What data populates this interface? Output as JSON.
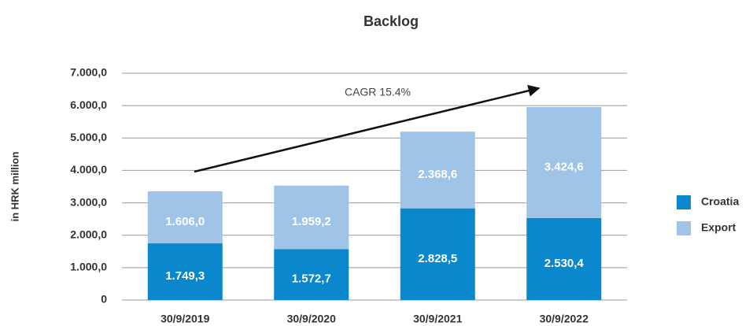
{
  "chart_data": {
    "type": "stacked_bar",
    "title": "Backlog",
    "y_axis_label": "in HRK million",
    "annotation": "CAGR 15.4%",
    "categories": [
      "30/9/2019",
      "30/9/2020",
      "30/9/2021",
      "30/9/2022"
    ],
    "series": [
      {
        "name": "Croatia",
        "color": "#0b87cd",
        "values": [
          1749.3,
          1572.7,
          2828.5,
          2530.4
        ],
        "value_labels": [
          "1.749,3",
          "1.572,7",
          "2.828,5",
          "2.530,4"
        ]
      },
      {
        "name": "Export",
        "color": "#9fc4e7",
        "values": [
          1606.0,
          1959.2,
          2368.6,
          3424.6
        ],
        "value_labels": [
          "1.606,0",
          "1.959,2",
          "2.368,6",
          "3.424,6"
        ]
      }
    ],
    "ylim": [
      0,
      7000
    ],
    "yticks": [
      0,
      {
        "value": 1000,
        "label": "1.000,0"
      },
      {
        "value": 2000,
        "label": "2.000,0"
      },
      {
        "value": 3000,
        "label": "3.000,0"
      },
      {
        "value": 4000,
        "label": "4.000,0"
      },
      {
        "value": 5000,
        "label": "5.000,0"
      },
      {
        "value": 6000,
        "label": "6.000,0"
      },
      {
        "value": 7000,
        "label": "7.000,0"
      }
    ],
    "grid": true,
    "legend": "right"
  }
}
